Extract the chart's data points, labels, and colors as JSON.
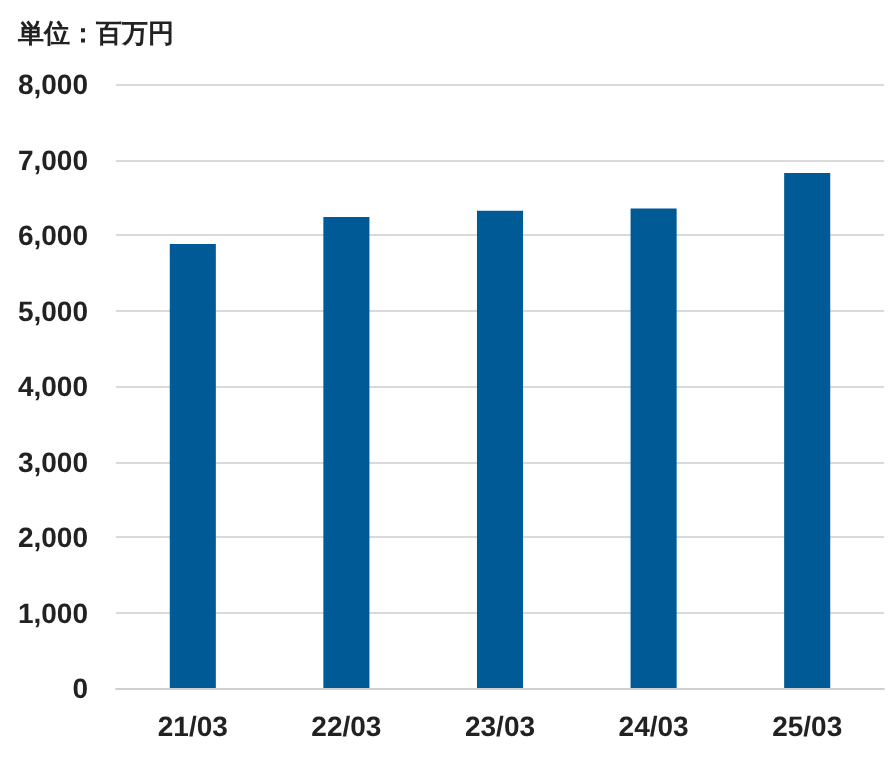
{
  "chart_data": {
    "type": "bar",
    "title": "単位：百万円",
    "categories": [
      "21/03",
      "22/03",
      "23/03",
      "24/03",
      "25/03"
    ],
    "values": [
      5880,
      6240,
      6320,
      6350,
      6820
    ],
    "color": "#005a96",
    "ylim": [
      0,
      8000
    ],
    "yticks": [
      0,
      {
        "value": 1000,
        "label": "1,000"
      },
      {
        "value": 2000,
        "label": "2,000"
      },
      {
        "value": 3000,
        "label": "3,000"
      },
      {
        "value": 4000,
        "label": "4,000"
      },
      {
        "value": 5000,
        "label": "5,000"
      },
      {
        "value": 6000,
        "label": "6,000"
      },
      {
        "value": 7000,
        "label": "7,000"
      },
      {
        "value": 8000,
        "label": "8,000"
      }
    ],
    "grid": true
  }
}
